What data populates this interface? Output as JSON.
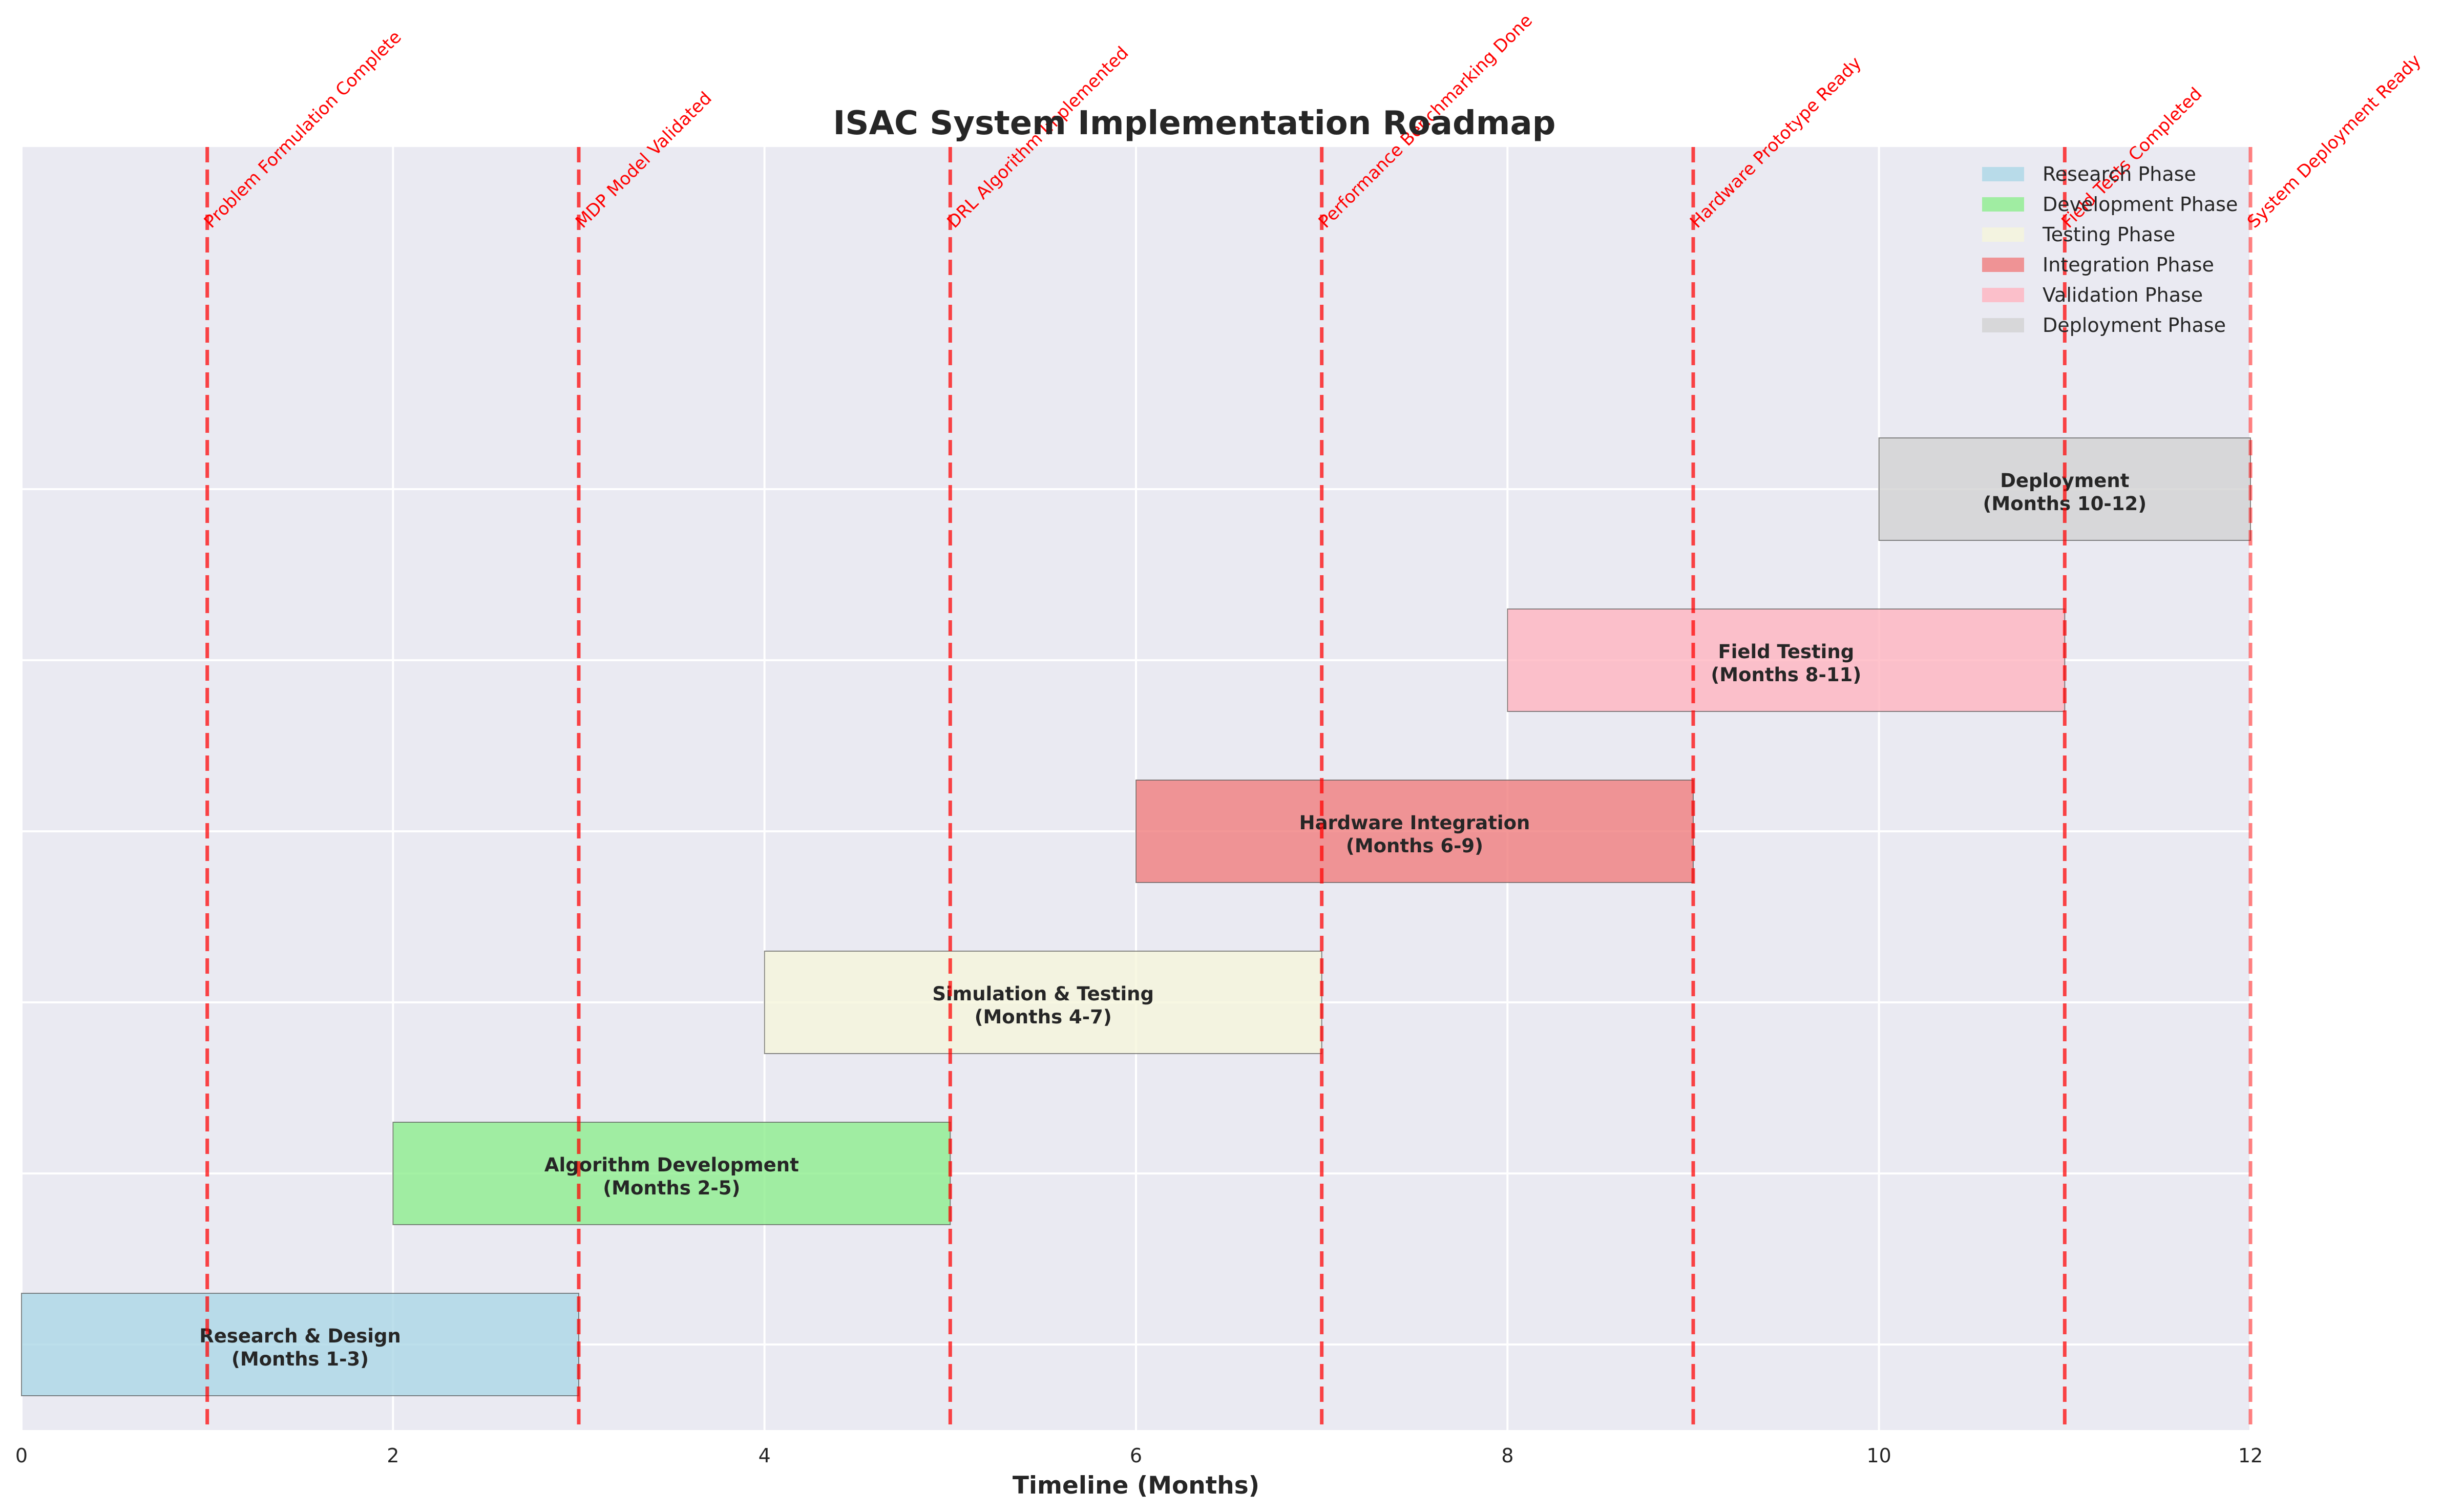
{
  "chart_data": {
    "type": "gantt",
    "title": "ISAC System Implementation Roadmap",
    "xlabel": "Timeline (Months)",
    "ylabel": "",
    "xlim": [
      0,
      12
    ],
    "xticks": [
      0,
      2,
      4,
      6,
      8,
      10,
      12
    ],
    "grid": true,
    "legend_position": "top-right",
    "tasks": [
      {
        "name": "Research & Design",
        "label": "Research & Design\n(Months 1-3)",
        "start": 0,
        "end": 3,
        "row": 0,
        "color": "#add8e6",
        "phase": "Research Phase"
      },
      {
        "name": "Algorithm Development",
        "label": "Algorithm Development\n(Months 2-5)",
        "start": 2,
        "end": 5,
        "row": 1,
        "color": "#90ee90",
        "phase": "Development Phase"
      },
      {
        "name": "Simulation & Testing",
        "label": "Simulation & Testing\n(Months 4-7)",
        "start": 4,
        "end": 7,
        "row": 2,
        "color": "#f5f5dc",
        "phase": "Testing Phase"
      },
      {
        "name": "Hardware Integration",
        "label": "Hardware Integration\n(Months 6-9)",
        "start": 6,
        "end": 9,
        "row": 3,
        "color": "#f08080",
        "phase": "Integration Phase"
      },
      {
        "name": "Field Testing",
        "label": "Field Testing\n(Months 8-11)",
        "start": 8,
        "end": 11,
        "row": 4,
        "color": "#ffb6c1",
        "phase": "Validation Phase"
      },
      {
        "name": "Deployment",
        "label": "Deployment\n(Months 10-12)",
        "start": 10,
        "end": 12,
        "row": 5,
        "color": "#d3d3d3",
        "phase": "Deployment Phase"
      }
    ],
    "milestones": [
      {
        "month": 1,
        "label": "Problem Formulation Complete"
      },
      {
        "month": 3,
        "label": "MDP Model Validated"
      },
      {
        "month": 5,
        "label": "DRL Algorithm Implemented"
      },
      {
        "month": 7,
        "label": "Performance Benchmarking Done"
      },
      {
        "month": 9,
        "label": "Hardware Prototype Ready"
      },
      {
        "month": 11,
        "label": "Field Tests Completed"
      },
      {
        "month": 12,
        "label": "System Deployment Ready"
      }
    ],
    "legend": [
      {
        "label": "Research Phase",
        "color": "#add8e6"
      },
      {
        "label": "Development Phase",
        "color": "#90ee90"
      },
      {
        "label": "Testing Phase",
        "color": "#f5f5dc"
      },
      {
        "label": "Integration Phase",
        "color": "#f08080"
      },
      {
        "label": "Validation Phase",
        "color": "#ffb6c1"
      },
      {
        "label": "Deployment Phase",
        "color": "#d3d3d3"
      }
    ],
    "colors": {
      "plot_background": "#eaeaf2",
      "grid": "#ffffff",
      "milestone": "#ff0000",
      "text": "#262626"
    }
  }
}
